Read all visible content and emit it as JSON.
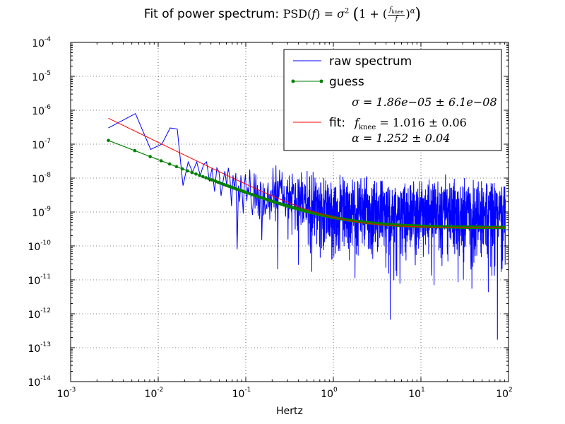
{
  "chart_data": {
    "type": "line",
    "title": {
      "prefix": "Fit of power spectrum:",
      "formula_lhs": "PSD(",
      "formula_var": "f",
      "formula_mid": ") = ",
      "sigma_sym": "σ",
      "sigma_exp": "2",
      "one_plus": "1 + (",
      "frac_num_base": "f",
      "frac_num_sub": "knee",
      "frac_den": "f",
      "close_paren": ")",
      "alpha_exp": "α"
    },
    "xlabel": "Hertz",
    "ylabel": "",
    "xscale": "log",
    "yscale": "log",
    "xlim": [
      0.001,
      100
    ],
    "ylim": [
      1e-14,
      0.0001
    ],
    "grid": true,
    "legend_position": "top-right",
    "x_ticks": [
      {
        "base": "10",
        "exp": "-3",
        "value": 0.001
      },
      {
        "base": "10",
        "exp": "-2",
        "value": 0.01
      },
      {
        "base": "10",
        "exp": "-1",
        "value": 0.1
      },
      {
        "base": "10",
        "exp": "0",
        "value": 1
      },
      {
        "base": "10",
        "exp": "1",
        "value": 10
      },
      {
        "base": "10",
        "exp": "2",
        "value": 100
      }
    ],
    "y_ticks": [
      {
        "base": "10",
        "exp": "-14",
        "value": 1e-14
      },
      {
        "base": "10",
        "exp": "-13",
        "value": 1e-13
      },
      {
        "base": "10",
        "exp": "-12",
        "value": 1e-12
      },
      {
        "base": "10",
        "exp": "-11",
        "value": 1e-11
      },
      {
        "base": "10",
        "exp": "-10",
        "value": 1e-10
      },
      {
        "base": "10",
        "exp": "-9",
        "value": 1e-09
      },
      {
        "base": "10",
        "exp": "-8",
        "value": 1e-08
      },
      {
        "base": "10",
        "exp": "-7",
        "value": 1e-07
      },
      {
        "base": "10",
        "exp": "-6",
        "value": 1e-06
      },
      {
        "base": "10",
        "exp": "-5",
        "value": 1e-05
      },
      {
        "base": "10",
        "exp": "-4",
        "value": 0.0001
      }
    ],
    "series": [
      {
        "name": "raw spectrum",
        "color": "#0000ff",
        "style": "line",
        "points": [
          [
            0.0027,
            3e-07
          ],
          [
            0.0055,
            8e-07
          ],
          [
            0.0082,
            7e-08
          ],
          [
            0.011,
            1e-07
          ],
          [
            0.0137,
            3e-07
          ],
          [
            0.0165,
            2.8e-07
          ],
          [
            0.0192,
            6e-09
          ],
          [
            0.022,
            3e-08
          ],
          [
            0.0247,
            1.5e-08
          ],
          [
            0.0275,
            3e-08
          ],
          [
            0.0302,
            1.2e-08
          ],
          [
            0.033,
            2.5e-08
          ],
          [
            0.0357,
            3e-08
          ],
          [
            0.0385,
            8e-09
          ],
          [
            0.0412,
            2e-08
          ],
          [
            0.044,
            4e-09
          ],
          [
            0.0467,
            2e-08
          ],
          [
            0.0495,
            1.5e-08
          ],
          [
            0.0522,
            3e-09
          ],
          [
            0.055,
            8e-09
          ],
          [
            0.0577,
            1.6e-08
          ],
          [
            0.0605,
            6e-09
          ],
          [
            0.0632,
            2e-08
          ],
          [
            0.066,
            1e-08
          ],
          [
            0.0687,
            1.5e-09
          ],
          [
            0.0715,
            1.2e-08
          ],
          [
            0.0742,
            5e-09
          ],
          [
            0.077,
            1.4e-08
          ],
          [
            0.0797,
            8e-11
          ],
          [
            0.0825,
            6e-09
          ],
          [
            0.0852,
            2e-09
          ],
          [
            0.088,
            1.2e-08
          ],
          [
            0.0907,
            4e-09
          ],
          [
            0.0935,
            9e-10
          ],
          [
            0.0962,
            6e-09
          ],
          [
            0.099,
            1.3e-08
          ]
        ]
      },
      {
        "name": "guess",
        "color": "#008000",
        "style": "line-dots",
        "sigma": 1.86e-05,
        "fknee": 1.0,
        "alpha": 1.0,
        "xrange": [
          0.0027,
          90
        ]
      },
      {
        "name": "fit",
        "color": "#ff0000",
        "style": "line",
        "sigma": 1.86e-05,
        "fknee": 1.016,
        "alpha": 1.252,
        "xrange": [
          0.0027,
          90
        ]
      }
    ],
    "raw_noise_envelope": {
      "note_free": true,
      "segments": [
        {
          "x": 0.1,
          "median": 4e-09
        },
        {
          "x": 1,
          "median": 1.2e-09
        },
        {
          "x": 10,
          "median": 9e-10
        },
        {
          "x": 90,
          "median": 9e-10
        }
      ]
    },
    "legend": {
      "raw_label": "raw spectrum",
      "guess_label": "guess",
      "fit_label": "fit:",
      "sigma_line": "σ = 1.86e−05 ± 6.1e−08",
      "fknee_line_sym": "f",
      "fknee_line_sub": "knee",
      "fknee_line_rest": " = 1.016 ± 0.06",
      "alpha_line": "α = 1.252 ± 0.04"
    },
    "colors": {
      "raw": "#0000ff",
      "guess": "#008000",
      "fit": "#ff0000",
      "grid": "#000000"
    }
  }
}
